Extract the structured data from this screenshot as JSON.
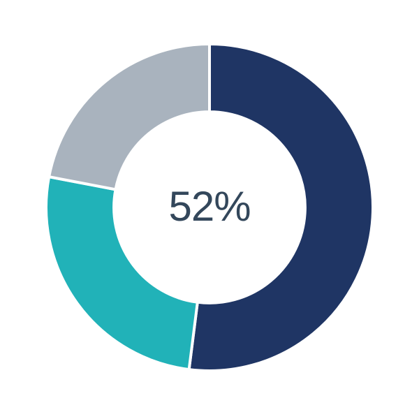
{
  "chart_data": {
    "type": "pie",
    "variant": "donut",
    "title": "",
    "values": [
      52,
      26,
      22
    ],
    "colors": [
      "#1f3564",
      "#21b2b8",
      "#a9b3be"
    ],
    "segment_names": [
      "navy-segment",
      "teal-segment",
      "gray-segment"
    ],
    "center_label": "52%",
    "center_label_color": "#33475b",
    "separator_color": "#ffffff",
    "separator_width": 4,
    "start_angle_deg": 0,
    "direction": "clockwise",
    "inner_radius_ratio": 0.585,
    "legend": "none",
    "grid": "off",
    "background": "#ffffff"
  }
}
